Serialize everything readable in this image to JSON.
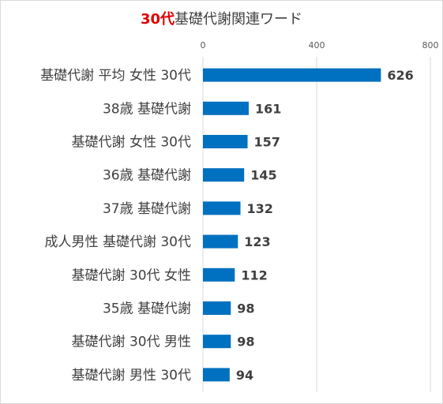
{
  "chart_data": {
    "type": "bar",
    "orientation": "horizontal",
    "title_accent": "30代",
    "title_rest": "基礎代謝関連ワード",
    "categories": [
      "基礎代謝 平均 女性 30代",
      "38歳 基礎代謝",
      "基礎代謝 女性 30代",
      "36歳 基礎代謝",
      "37歳 基礎代謝",
      "成人男性 基礎代謝 30代",
      "基礎代謝 30代 女性",
      "35歳 基礎代謝",
      "基礎代謝 30代 男性",
      "基礎代謝 男性 30代"
    ],
    "values": [
      626,
      161,
      157,
      145,
      132,
      123,
      112,
      98,
      98,
      94
    ],
    "xlim": [
      0,
      800
    ],
    "xticks": [
      0,
      400,
      800
    ],
    "axis_position": "top",
    "grid": true,
    "bar_color": "#0070c0",
    "gridline_color": "#d9d9d9"
  }
}
